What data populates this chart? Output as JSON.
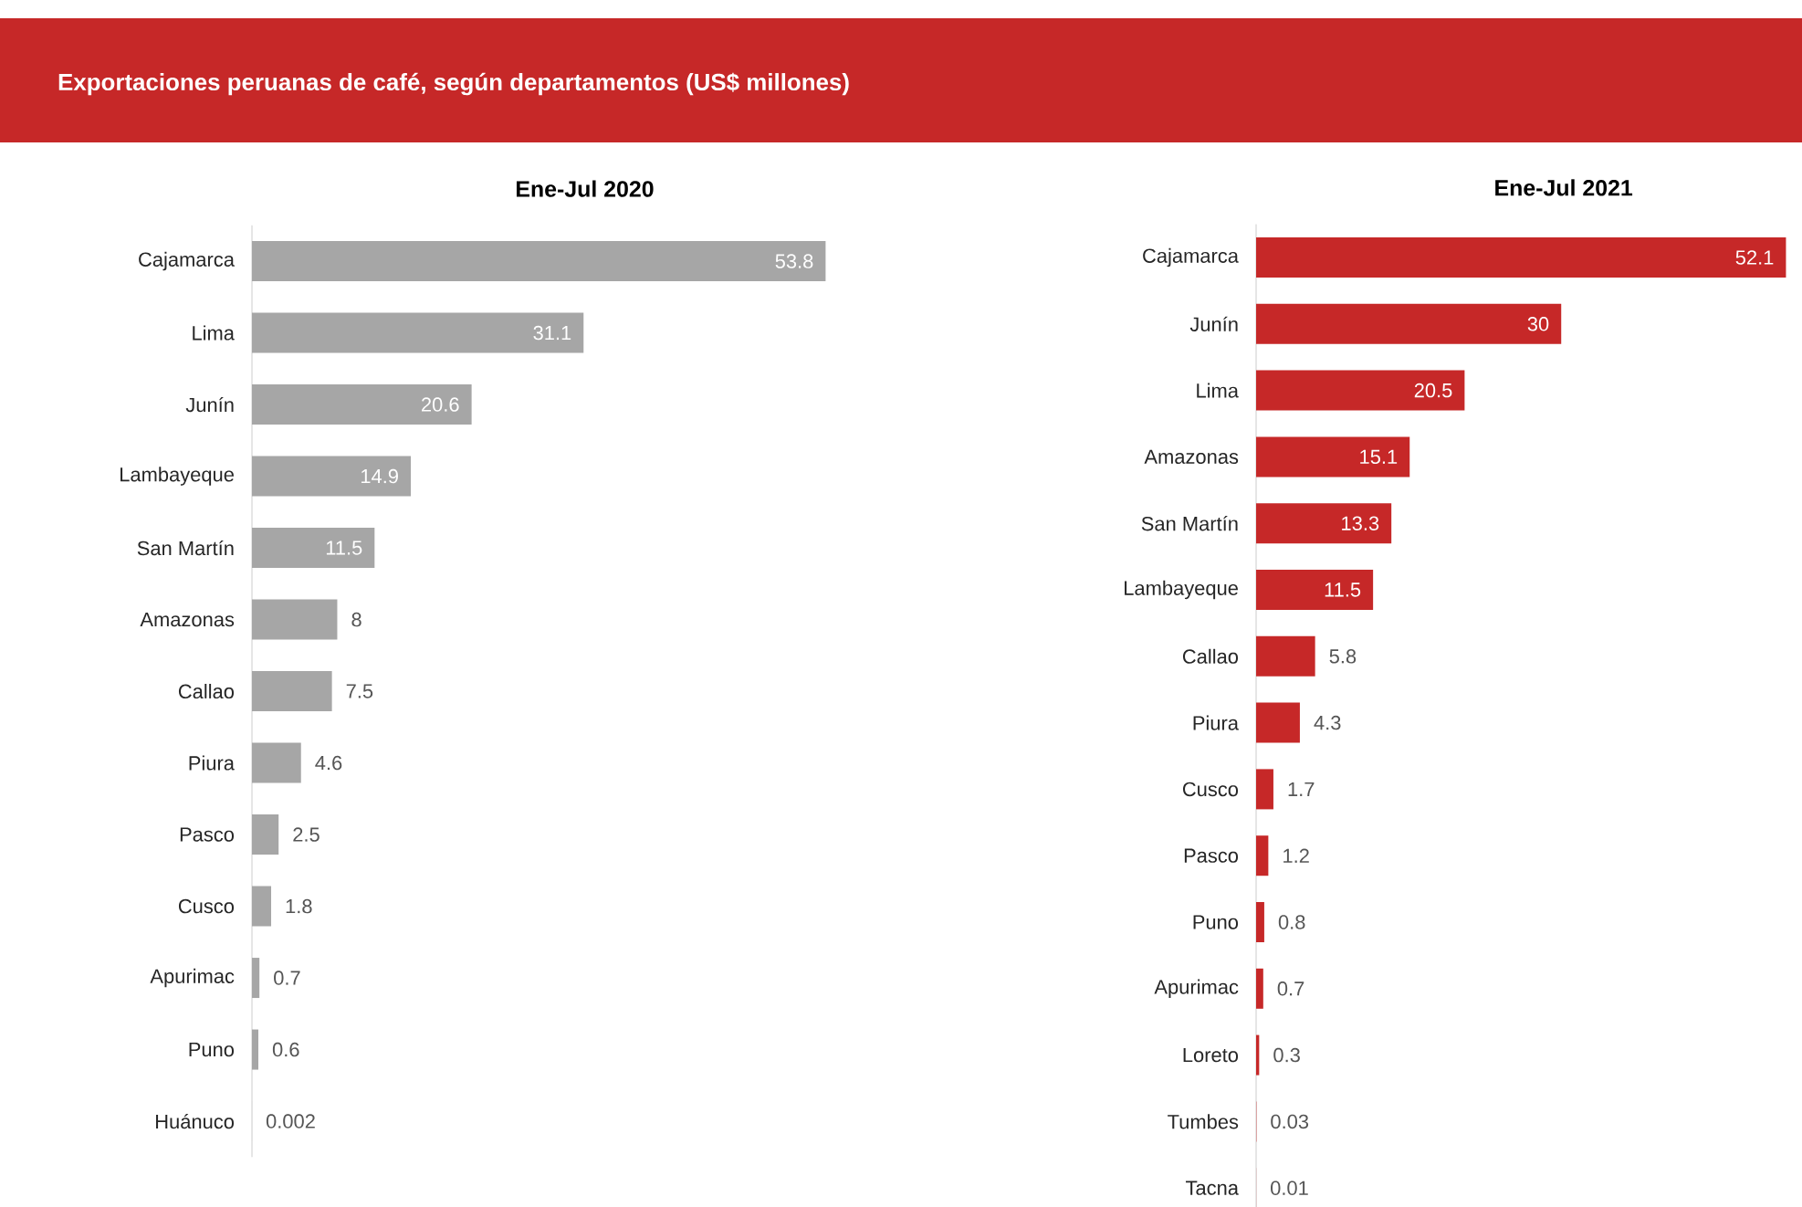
{
  "chart_data": [
    {
      "type": "bar",
      "orientation": "horizontal",
      "title": "Exportaciones peruanas de café, según departamentos (US$ millones)",
      "subtitle": "Ene-Jul 2020",
      "data_labels": true,
      "color": "#a6a6a6",
      "categories": [
        "Cajamarca",
        "Lima",
        "Junín",
        "Lambayeque",
        "San Martín",
        "Amazonas",
        "Callao",
        "Piura",
        "Pasco",
        "Cusco",
        "Apurimac",
        "Puno",
        "Huánuco"
      ],
      "values": [
        53.8,
        31.1,
        20.6,
        14.9,
        11.5,
        8,
        7.5,
        4.6,
        2.5,
        1.8,
        0.7,
        0.6,
        0.002
      ]
    },
    {
      "type": "bar",
      "orientation": "horizontal",
      "subtitle": "Ene-Jul 2021",
      "data_labels": true,
      "color": "#c62828",
      "categories": [
        "Cajamarca",
        "Junín",
        "Lima",
        "Amazonas",
        "San Martín",
        "Lambayeque",
        "Callao",
        "Piura",
        "Cusco",
        "Pasco",
        "Puno",
        "Apurimac",
        "Loreto",
        "Tumbes",
        "Tacna"
      ],
      "values": [
        52.1,
        30,
        20.5,
        15.1,
        13.3,
        11.5,
        5.8,
        4.3,
        1.7,
        1.2,
        0.8,
        0.7,
        0.3,
        0.03,
        0.01
      ]
    }
  ]
}
